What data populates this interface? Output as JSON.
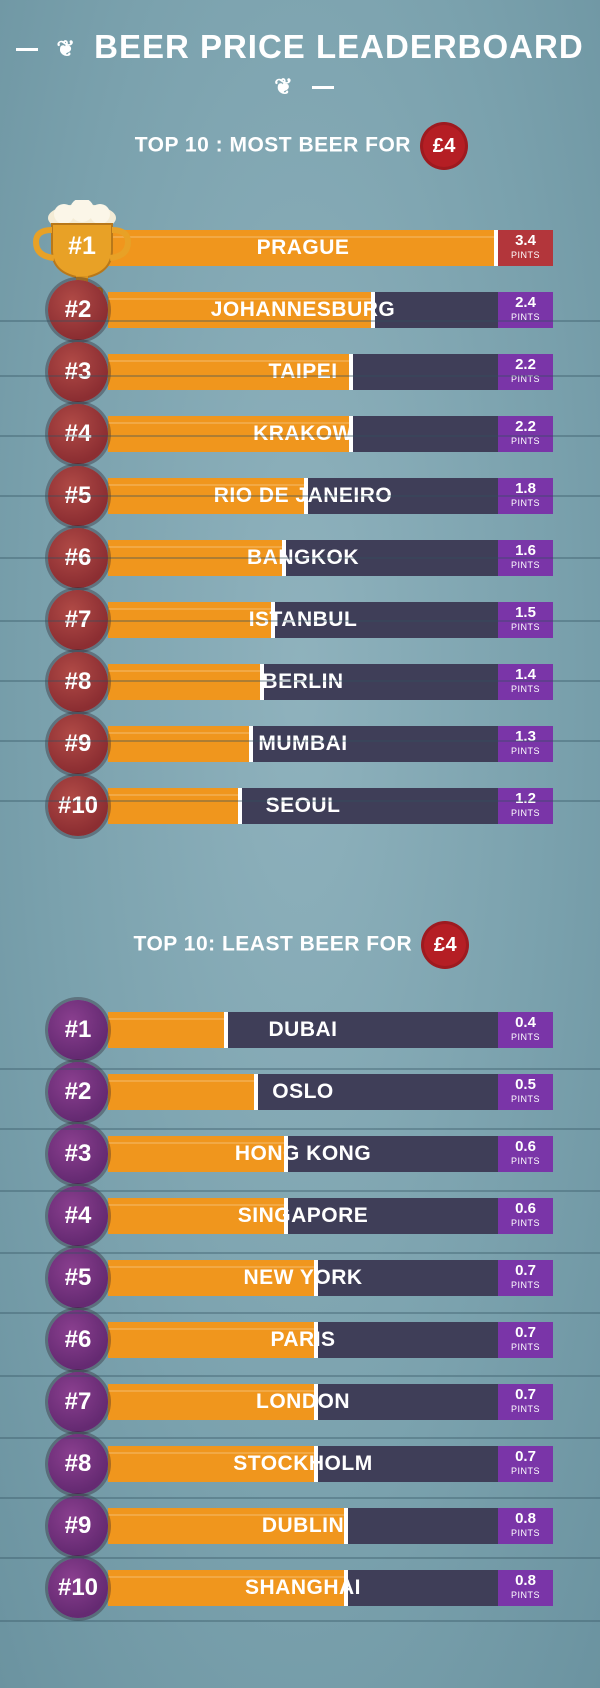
{
  "header": {
    "title": "BEER PRICE LEADERBOARD",
    "wheat_icon": "wheat-icon"
  },
  "colors": {
    "beer": "#f0961d",
    "empty": "#3f3e58",
    "value_box": "#7a35a8",
    "first_value_box": "#b3363b",
    "price_badge": "#b51e24",
    "rank_most": "#8c2e32",
    "rank_least": "#652a72"
  },
  "chart_data": [
    {
      "type": "bar",
      "title": "TOP 10 : MOST BEER FOR",
      "price_badge": "£4",
      "unit": "PINTS",
      "ranks": [
        "#1",
        "#2",
        "#3",
        "#4",
        "#5",
        "#6",
        "#7",
        "#8",
        "#9",
        "#10"
      ],
      "categories": [
        "PRAGUE",
        "JOHANNESBURG",
        "TAIPEI",
        "KRAKOW",
        "RIO DE JANEIRO",
        "BANGKOK",
        "ISTANBUL",
        "BERLIN",
        "MUMBAI",
        "SEOUL"
      ],
      "values": [
        3.4,
        2.4,
        2.2,
        2.2,
        1.8,
        1.6,
        1.5,
        1.4,
        1.3,
        1.2
      ],
      "value_labels": [
        "3.4",
        "2.4",
        "2.2",
        "2.2",
        "1.8",
        "1.6",
        "1.5",
        "1.4",
        "1.3",
        "1.2"
      ],
      "ylim": [
        0,
        3.4
      ]
    },
    {
      "type": "bar",
      "title": "TOP 10: LEAST BEER FOR",
      "price_badge": "£4",
      "unit": "PINTS",
      "ranks": [
        "#1",
        "#2",
        "#3",
        "#4",
        "#5",
        "#6",
        "#7",
        "#8",
        "#9",
        "#10"
      ],
      "categories": [
        "DUBAI",
        "OSLO",
        "HONG KONG",
        "SINGAPORE",
        "NEW YORK",
        "PARIS",
        "LONDON",
        "STOCKHOLM",
        "DUBLIN",
        "SHANGHAI"
      ],
      "values": [
        0.4,
        0.5,
        0.6,
        0.6,
        0.7,
        0.7,
        0.7,
        0.7,
        0.8,
        0.8
      ],
      "value_labels": [
        "0.4",
        "0.5",
        "0.6",
        "0.6",
        "0.7",
        "0.7",
        "0.7",
        "0.7",
        "0.8",
        "0.8"
      ],
      "ylim": [
        0,
        1.3
      ]
    }
  ]
}
